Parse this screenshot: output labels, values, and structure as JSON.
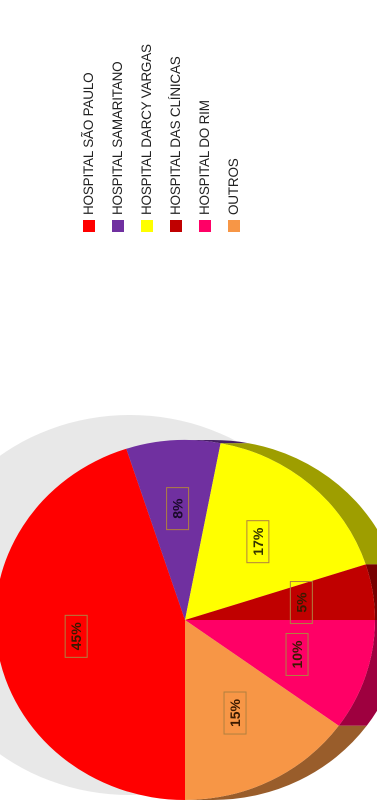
{
  "chart_data": {
    "type": "pie",
    "title": "",
    "legend_position": "right",
    "slices": [
      {
        "name": "HOSPITAL SÃO PAULO",
        "label": "45%",
        "value": 45,
        "color": "#ff0000"
      },
      {
        "name": "HOSPITAL SAMARITANO",
        "label": "8%",
        "value": 8,
        "color": "#7030a0"
      },
      {
        "name": "HOSPITAL DARCY VARGAS",
        "label": "17%",
        "value": 17,
        "color": "#ffff00"
      },
      {
        "name": "HOSPITAL DAS CLÍNICAS",
        "label": "5%",
        "value": 5,
        "color": "#c00000"
      },
      {
        "name": "HOSPITAL DO RIM",
        "label": "10%",
        "value": 10,
        "color": "#ff0066"
      },
      {
        "name": "OUTROS",
        "label": "15%",
        "value": 15,
        "color": "#f79646"
      }
    ]
  }
}
